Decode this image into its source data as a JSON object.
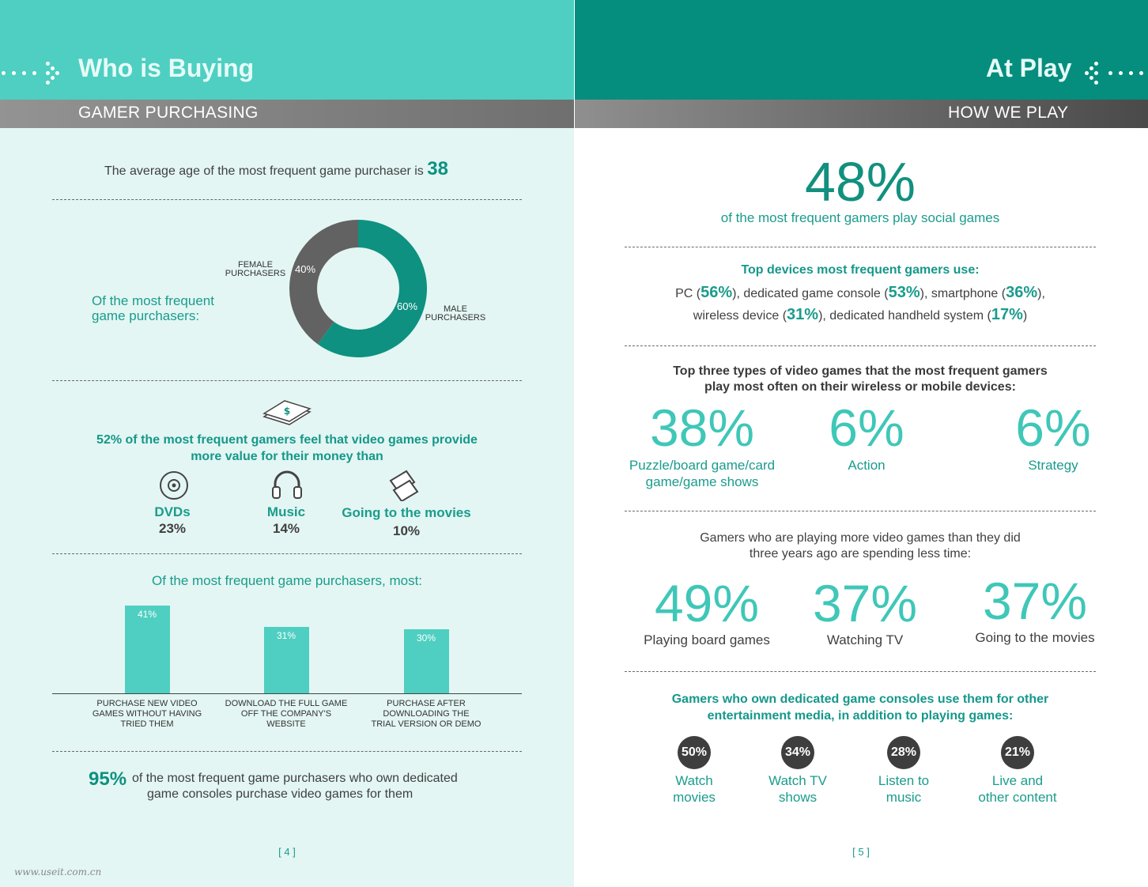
{
  "left": {
    "header_title": "Who is Buying",
    "section_title": "GAMER PURCHASING",
    "avg_age_text": "The average age of the most frequent game purchaser is",
    "avg_age_value": "38",
    "donut_intro_line1": "Of the most frequent",
    "donut_intro_line2": "game purchasers:",
    "donut": {
      "female_label_line1": "FEMALE",
      "female_label_line2": "PURCHASERS",
      "female_pct": "40%",
      "male_label_line1": "MALE",
      "male_label_line2": "PURCHASERS",
      "male_pct": "60%"
    },
    "value_line1": "52% of the most frequent gamers feel that video games provide",
    "value_line2": "more value for their money than",
    "value_items": [
      {
        "label": "DVDs",
        "pct": "23%",
        "icon": "dvd-icon"
      },
      {
        "label": "Music",
        "pct": "14%",
        "icon": "headphones-icon"
      },
      {
        "label": "Going to the movies",
        "pct": "10%",
        "icon": "tickets-icon"
      }
    ],
    "bar_title": "Of the most frequent game purchasers, most:",
    "consoles_pct": "95%",
    "consoles_line1": "of the most frequent game purchasers who own dedicated",
    "consoles_line2": "game consoles purchase video games for them",
    "page_number": "[ 4 ]"
  },
  "chart_data": [
    {
      "type": "pie",
      "title": "Of the most frequent game purchasers:",
      "categories": [
        "FEMALE PURCHASERS",
        "MALE PURCHASERS"
      ],
      "values": [
        40,
        60
      ],
      "colors": [
        "#626262",
        "#0e9180"
      ]
    },
    {
      "type": "bar",
      "title": "Of the most frequent game purchasers, most:",
      "categories": [
        [
          "PURCHASE NEW VIDEO",
          "GAMES WITHOUT HAVING",
          "TRIED THEM"
        ],
        [
          "DOWNLOAD THE FULL GAME",
          "OFF THE COMPANY'S",
          "WEBSITE"
        ],
        [
          "PURCHASE AFTER",
          "DOWNLOADING THE",
          "TRIAL VERSION OR DEMO"
        ]
      ],
      "values": [
        41,
        31,
        30
      ],
      "value_labels": [
        "41%",
        "31%",
        "30%"
      ],
      "ylim": [
        0,
        45
      ],
      "color": "#4ecfc1"
    }
  ],
  "right": {
    "header_title": "At Play",
    "section_title": "HOW WE PLAY",
    "social_pct": "48%",
    "social_text": "of the most frequent gamers play social games",
    "devices_title": "Top devices most frequent gamers use:",
    "devices": {
      "pc_label": "PC (",
      "pc_pct": "56%",
      "console_label": "), dedicated game console (",
      "console_pct": "53%",
      "phone_label": "), smartphone (",
      "phone_pct": "36%",
      "line1_end": "),",
      "wireless_label": "wireless device (",
      "wireless_pct": "31%",
      "handheld_label": "), dedicated handheld system (",
      "handheld_pct": "17%",
      "line2_end": ")"
    },
    "types_title_line1": "Top three types of video games that the most frequent gamers",
    "types_title_line2": "play most often on their wireless or mobile devices:",
    "types": [
      {
        "pct": "38%",
        "label_line1": "Puzzle/board game/card",
        "label_line2": "game/game shows"
      },
      {
        "pct": "6%",
        "label_line1": "Action",
        "label_line2": ""
      },
      {
        "pct": "6%",
        "label_line1": "Strategy",
        "label_line2": ""
      }
    ],
    "less_time_line1": "Gamers who are playing more video games than they did",
    "less_time_line2": "three years ago are spending less time:",
    "less_time": [
      {
        "pct": "49%",
        "label": "Playing board games"
      },
      {
        "pct": "37%",
        "label": "Watching TV"
      },
      {
        "pct": "37%",
        "label": "Going to the movies"
      }
    ],
    "consoles_title_line1": "Gamers who own dedicated game consoles use them for other",
    "consoles_title_line2": "entertainment media, in addition to playing games:",
    "console_uses": [
      {
        "pct": "50%",
        "line1": "Watch",
        "line2": "movies"
      },
      {
        "pct": "34%",
        "line1": "Watch TV",
        "line2": "shows"
      },
      {
        "pct": "28%",
        "line1": "Listen to",
        "line2": "music"
      },
      {
        "pct": "21%",
        "line1": "Live and",
        "line2": "other content"
      }
    ],
    "page_number": "[ 5 ]"
  },
  "watermark": "www.useit.com.cn"
}
